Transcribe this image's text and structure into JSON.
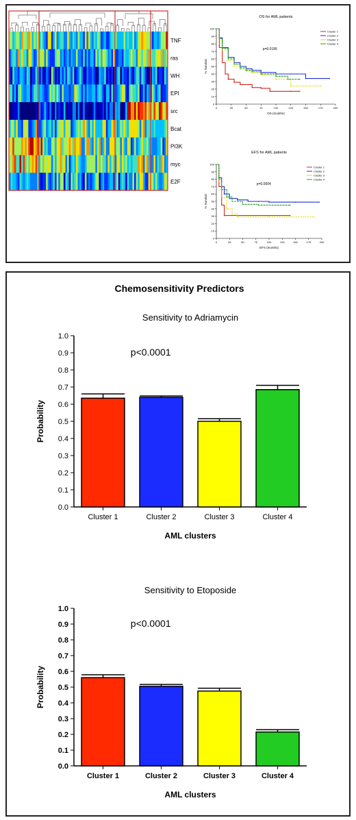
{
  "top_panel": {
    "heatmap": {
      "rows": [
        "TNF",
        "ras",
        "WH",
        "EPI",
        "src",
        "Bcat",
        "PI3K",
        "myc",
        "E2F"
      ]
    }
  },
  "chart_data": [
    {
      "type": "line",
      "title": "OS for AML patients",
      "xlabel": "OS (months)",
      "ylabel": "% Survival",
      "xlim": [
        0,
        200
      ],
      "ylim": [
        0,
        100
      ],
      "xticks": [
        0,
        25,
        50,
        75,
        100,
        125,
        150,
        175,
        200
      ],
      "yticks": [
        0,
        10,
        20,
        30,
        40,
        50,
        60,
        70,
        80,
        90,
        100
      ],
      "annotation": "p=0.0195",
      "legend_position": "top-right",
      "series": [
        {
          "name": "Cluster 1",
          "color": "#d42020",
          "points": [
            [
              0,
              100
            ],
            [
              5,
              75
            ],
            [
              10,
              55
            ],
            [
              15,
              40
            ],
            [
              20,
              33
            ],
            [
              30,
              29
            ],
            [
              40,
              26
            ],
            [
              60,
              22
            ],
            [
              75,
              21
            ],
            [
              90,
              17
            ],
            [
              125,
              17
            ],
            [
              140,
              17
            ]
          ]
        },
        {
          "name": "Cluster 2",
          "color": "#1a2fd8",
          "points": [
            [
              0,
              100
            ],
            [
              5,
              88
            ],
            [
              10,
              75
            ],
            [
              20,
              62
            ],
            [
              30,
              55
            ],
            [
              40,
              50
            ],
            [
              50,
              47
            ],
            [
              60,
              45
            ],
            [
              75,
              42
            ],
            [
              100,
              40
            ],
            [
              125,
              40
            ],
            [
              150,
              34
            ],
            [
              190,
              34
            ]
          ]
        },
        {
          "name": "Cluster 3",
          "color": "#e8d800",
          "points": [
            [
              0,
              100
            ],
            [
              5,
              85
            ],
            [
              10,
              72
            ],
            [
              20,
              58
            ],
            [
              30,
              50
            ],
            [
              40,
              46
            ],
            [
              50,
              44
            ],
            [
              60,
              42
            ],
            [
              75,
              39
            ],
            [
              100,
              33
            ],
            [
              125,
              24
            ],
            [
              150,
              24
            ],
            [
              175,
              24
            ]
          ]
        },
        {
          "name": "Cluster 4",
          "color": "#20a020",
          "points": [
            [
              0,
              100
            ],
            [
              5,
              87
            ],
            [
              10,
              74
            ],
            [
              20,
              60
            ],
            [
              30,
              53
            ],
            [
              40,
              48
            ],
            [
              50,
              45
            ],
            [
              60,
              43
            ],
            [
              75,
              40
            ],
            [
              100,
              37
            ],
            [
              120,
              33
            ],
            [
              140,
              33
            ]
          ]
        }
      ]
    },
    {
      "type": "line",
      "title": "EFS for AML patients",
      "xlabel": "EFS (months)",
      "ylabel": "% Survival",
      "xlim": [
        0,
        200
      ],
      "ylim": [
        0,
        100
      ],
      "xticks": [
        0,
        25,
        50,
        75,
        100,
        125,
        150,
        175,
        200
      ],
      "yticks": [
        0,
        10,
        20,
        30,
        40,
        50,
        60,
        70,
        80,
        90,
        100
      ],
      "annotation": "p=0.0004",
      "legend_position": "top-right",
      "series": [
        {
          "name": "Cluster 1",
          "color": "#d42020",
          "points": [
            [
              0,
              100
            ],
            [
              5,
              70
            ],
            [
              10,
              45
            ],
            [
              15,
              31
            ],
            [
              140,
              31
            ]
          ]
        },
        {
          "name": "Cluster 2",
          "color": "#1a2fd8",
          "points": [
            [
              0,
              100
            ],
            [
              5,
              82
            ],
            [
              10,
              70
            ],
            [
              15,
              60
            ],
            [
              25,
              54
            ],
            [
              40,
              52
            ],
            [
              60,
              50
            ],
            [
              80,
              50
            ],
            [
              100,
              49
            ],
            [
              150,
              49
            ],
            [
              195,
              49
            ]
          ]
        },
        {
          "name": "Cluster 3",
          "color": "#e8d800",
          "points": [
            [
              0,
              100
            ],
            [
              5,
              75
            ],
            [
              10,
              55
            ],
            [
              20,
              40
            ],
            [
              30,
              33
            ],
            [
              40,
              29
            ],
            [
              100,
              29
            ],
            [
              185,
              29
            ]
          ]
        },
        {
          "name": "Cluster 4",
          "color": "#20a020",
          "points": [
            [
              0,
              100
            ],
            [
              5,
              80
            ],
            [
              10,
              66
            ],
            [
              20,
              56
            ],
            [
              30,
              50
            ],
            [
              50,
              46
            ],
            [
              80,
              45
            ],
            [
              140,
              45
            ]
          ]
        }
      ]
    },
    {
      "type": "bar",
      "title": "Sensitivity to Adriamycin",
      "xlabel": "AML clusters",
      "ylabel": "Probability",
      "categories": [
        "Cluster 1",
        "Cluster 2",
        "Cluster 3",
        "Cluster 4"
      ],
      "values": [
        0.635,
        0.64,
        0.5,
        0.685
      ],
      "errors": [
        0.025,
        0.008,
        0.015,
        0.025
      ],
      "colors": [
        "#ff2a00",
        "#1a2cff",
        "#ffff00",
        "#22cc22"
      ],
      "ylim": [
        0,
        1.0
      ],
      "yticks": [
        "0.0",
        "0.1",
        "0.2",
        "0.3",
        "0.4",
        "0.5",
        "0.6",
        "0.7",
        "0.8",
        "0.9",
        "1.0"
      ],
      "annotation": "p<0.0001"
    },
    {
      "type": "bar",
      "title": "Sensitivity to Etoposide",
      "xlabel": "AML clusters",
      "ylabel": "Probability",
      "categories": [
        "Cluster 1",
        "Cluster 2",
        "Cluster 3",
        "Cluster 4"
      ],
      "values": [
        0.56,
        0.505,
        0.475,
        0.215
      ],
      "errors": [
        0.018,
        0.012,
        0.018,
        0.015
      ],
      "colors": [
        "#ff2a00",
        "#1a2cff",
        "#ffff00",
        "#22cc22"
      ],
      "ylim": [
        0,
        1.0
      ],
      "yticks": [
        "0.0",
        "0.1",
        "0.2",
        "0.3",
        "0.4",
        "0.5",
        "0.6",
        "0.7",
        "0.8",
        "0.9",
        "1.0"
      ],
      "annotation": "p<0.0001"
    }
  ],
  "bottom_panel": {
    "title": "Chemosensitivity Predictors"
  }
}
